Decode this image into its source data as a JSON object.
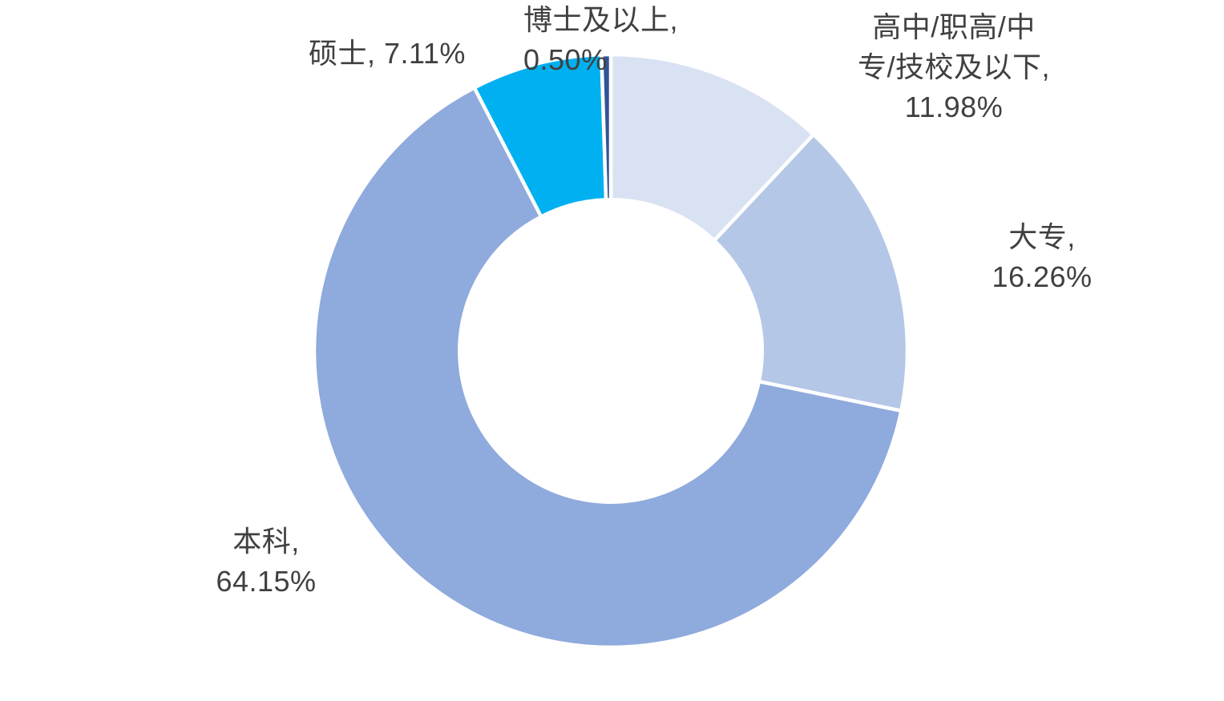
{
  "chart_data": {
    "type": "pie",
    "subtype": "doughnut",
    "categories": [
      "高中/职高/中专/技校及以下",
      "大专",
      "本科",
      "硕士",
      "博士及以上"
    ],
    "keys": [
      "gaozhong",
      "dazhuan",
      "benke",
      "shuoshi",
      "boshi"
    ],
    "values": [
      11.98,
      16.26,
      64.15,
      7.11,
      0.5
    ],
    "unit": "%",
    "colors": [
      "#D9E2F3",
      "#B4C7E7",
      "#8FAADC",
      "#00B0F0",
      "#2F5597"
    ],
    "start_angle_deg": 0,
    "direction": "clockwise",
    "hole_radius_pct": 51,
    "background_color": "#FFFFFF",
    "separator_color": "#FFFFFF",
    "label_color": "#404040",
    "legend": "none",
    "title": "",
    "data_labels": {
      "gaozhong": "高中/职高/中\n专/技校及以下,\n11.98%",
      "dazhuan": "大专,\n16.26%",
      "benke": "本科,\n64.15%",
      "shuoshi": "硕士, 7.11%",
      "boshi": "博士及以上,\n0.50%"
    }
  }
}
